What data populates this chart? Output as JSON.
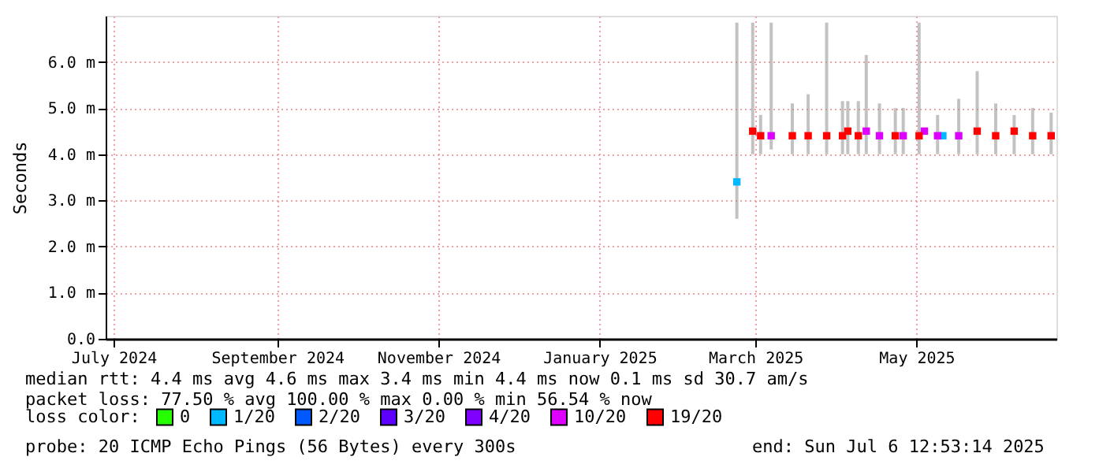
{
  "chart_data": {
    "type": "scatter",
    "ylabel": "Seconds",
    "xlim": [
      "2024-07-12",
      "2025-07-07"
    ],
    "xticks": [
      {
        "value": "2024-07-15",
        "label": "July 2024"
      },
      {
        "value": "2024-09-15",
        "label": "September 2024"
      },
      {
        "value": "2024-11-15",
        "label": "November 2024"
      },
      {
        "value": "2025-01-15",
        "label": "January 2025"
      },
      {
        "value": "2025-03-15",
        "label": "March 2025"
      },
      {
        "value": "2025-05-15",
        "label": "May 2025"
      }
    ],
    "ylim": [
      0,
      7
    ],
    "yticks": [
      {
        "value": 0,
        "label": "0.0"
      },
      {
        "value": 1,
        "label": "1.0 m"
      },
      {
        "value": 2,
        "label": "2.0 m"
      },
      {
        "value": 3,
        "label": "3.0 m"
      },
      {
        "value": 4,
        "label": "4.0 m"
      },
      {
        "value": 5,
        "label": "5.0 m"
      },
      {
        "value": 6,
        "label": "6.0 m"
      }
    ],
    "grid": true,
    "legend": "bottom",
    "legend_title": "loss color:",
    "marker": "square",
    "series": [
      {
        "type": "bar",
        "color": "#9a9a9a",
        "x": [
          "2025-03-08",
          "2025-03-14",
          "2025-03-17",
          "2025-03-21",
          "2025-03-29",
          "2025-04-04",
          "2025-04-11",
          "2025-04-17",
          "2025-04-19",
          "2025-04-23",
          "2025-04-26",
          "2025-05-01",
          "2025-05-07",
          "2025-05-10",
          "2025-05-16",
          "2025-05-23",
          "2025-05-31",
          "2025-06-07",
          "2025-06-14",
          "2025-06-21",
          "2025-06-28",
          "2025-07-05"
        ],
        "base": [
          2.6,
          4.0,
          4.0,
          4.1,
          4.0,
          4.0,
          4.0,
          4.0,
          4.0,
          4.0,
          4.0,
          4.0,
          4.0,
          4.0,
          4.0,
          4.0,
          4.0,
          4.0,
          4.0,
          4.0,
          4.0,
          4.0
        ],
        "values": [
          4.25,
          2.85,
          0.85,
          2.75,
          1.1,
          1.3,
          2.85,
          1.15,
          1.15,
          1.15,
          2.15,
          1.1,
          1.0,
          1.0,
          2.85,
          0.85,
          1.2,
          1.8,
          1.1,
          0.85,
          1.0,
          0.9
        ]
      },
      {
        "name": "0",
        "color": "#26ff00"
      },
      {
        "name": "1/20",
        "color": "#00b8ff",
        "x": [
          "2025-03-08",
          "2025-05-25"
        ],
        "values": [
          3.4,
          4.4
        ]
      },
      {
        "name": "2/20",
        "color": "#0059ff"
      },
      {
        "name": "3/20",
        "color": "#5e00ff"
      },
      {
        "name": "4/20",
        "color": "#7e00ff"
      },
      {
        "name": "10/20",
        "color": "#dd00ff",
        "x": [
          "2025-03-21",
          "2025-04-26",
          "2025-05-01",
          "2025-05-10",
          "2025-05-18",
          "2025-05-23",
          "2025-05-31"
        ],
        "values": [
          4.4,
          4.5,
          4.4,
          4.4,
          4.5,
          4.4,
          4.4
        ]
      },
      {
        "name": "19/20",
        "color": "#ff0000",
        "x": [
          "2025-03-14",
          "2025-03-17",
          "2025-03-29",
          "2025-04-04",
          "2025-04-11",
          "2025-04-17",
          "2025-04-19",
          "2025-04-23",
          "2025-05-07",
          "2025-05-16",
          "2025-06-07",
          "2025-06-14",
          "2025-06-21",
          "2025-06-28",
          "2025-07-05"
        ],
        "values": [
          4.5,
          4.4,
          4.4,
          4.4,
          4.4,
          4.4,
          4.5,
          4.4,
          4.4,
          4.4,
          4.5,
          4.4,
          4.5,
          4.4,
          4.4
        ]
      }
    ],
    "annotations": [
      "median rtt:  4.4 ms avg  4.6 ms max  3.4 ms min  4.4 ms now  0.1 ms sd  30.7   am/s",
      "packet loss: 77.50 % avg  100.00 % max  0.00 % min  56.54 % now",
      "probe:       20 ICMP Echo Pings (56 Bytes) every 300s",
      "end: Sun Jul  6 12:53:14 2025"
    ]
  }
}
